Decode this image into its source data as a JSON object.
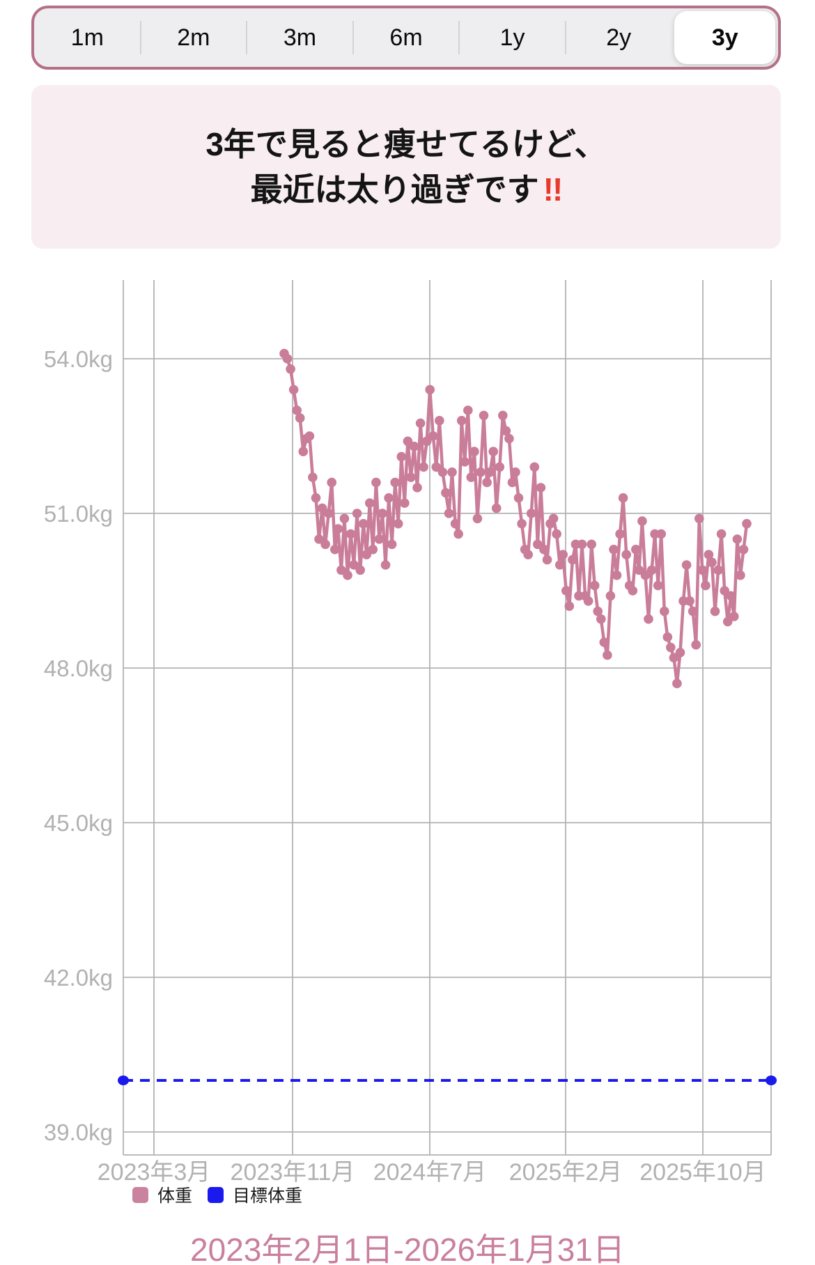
{
  "segmented_control": {
    "items": [
      {
        "label": "1m",
        "selected": false
      },
      {
        "label": "2m",
        "selected": false
      },
      {
        "label": "3m",
        "selected": false
      },
      {
        "label": "6m",
        "selected": false
      },
      {
        "label": "1y",
        "selected": false
      },
      {
        "label": "2y",
        "selected": false
      },
      {
        "label": "3y",
        "selected": true
      }
    ]
  },
  "banner": {
    "line1": "3年で見ると痩せてるけど、",
    "line2": "最近は太り過ぎです",
    "emphasis": "!!",
    "background": "#f8eef1",
    "emphasis_color": "#e8392b"
  },
  "legend": {
    "items": [
      {
        "label": "体重",
        "color": "#c9839e"
      },
      {
        "label": "目標体重",
        "color": "#1a1aee"
      }
    ]
  },
  "footer": {
    "date_range": "2023年2月1日-2026年1月31日",
    "color": "#c97f9d"
  },
  "chart_data": {
    "type": "line",
    "title": "",
    "xlabel": "",
    "ylabel": "",
    "grid": true,
    "legend_position": "bottom-left",
    "ylim": [
      38.6,
      55.5
    ],
    "x_range": [
      "2023-02-01",
      "2026-01-31"
    ],
    "y_ticks": [
      {
        "value": 54,
        "label": "54.0kg"
      },
      {
        "value": 51,
        "label": "51.0kg"
      },
      {
        "value": 48,
        "label": "48.0kg"
      },
      {
        "value": 45,
        "label": "45.0kg"
      },
      {
        "value": 42,
        "label": "42.0kg"
      },
      {
        "value": 39,
        "label": "39.0kg"
      }
    ],
    "x_ticks": [
      "2023年3月",
      "2023年11月",
      "2024年7月",
      "2025年2月",
      "2025年10月"
    ],
    "axis_color": "#b1b1b3",
    "grid_color": "#b3b3b5",
    "series": [
      {
        "name": "体重",
        "type": "scatter-line",
        "color": "#c97d98",
        "points": [
          [
            "2023-10-23",
            54.1
          ],
          [
            "2023-10-26",
            54.0
          ],
          [
            "2023-10-29",
            53.8
          ],
          [
            "2023-11-03",
            53.4
          ],
          [
            "2023-11-08",
            53.0
          ],
          [
            "2023-11-13",
            52.85
          ],
          [
            "2023-11-19",
            52.2
          ],
          [
            "2023-11-23",
            52.45
          ],
          [
            "2023-11-27",
            52.5
          ],
          [
            "2023-12-02",
            51.7
          ],
          [
            "2023-12-05",
            51.3
          ],
          [
            "2023-12-09",
            50.5
          ],
          [
            "2023-12-13",
            51.1
          ],
          [
            "2023-12-18",
            50.4
          ],
          [
            "2023-12-22",
            51.0
          ],
          [
            "2023-12-27",
            51.6
          ],
          [
            "2023-12-31",
            50.3
          ],
          [
            "2024-01-04",
            50.7
          ],
          [
            "2024-01-09",
            49.9
          ],
          [
            "2024-01-14",
            50.9
          ],
          [
            "2024-01-19",
            49.8
          ],
          [
            "2024-01-24",
            50.6
          ],
          [
            "2024-01-29",
            50.0
          ],
          [
            "2024-02-03",
            51.0
          ],
          [
            "2024-02-08",
            49.9
          ],
          [
            "2024-02-13",
            50.8
          ],
          [
            "2024-02-18",
            50.2
          ],
          [
            "2024-02-23",
            51.2
          ],
          [
            "2024-02-28",
            50.3
          ],
          [
            "2024-03-04",
            51.6
          ],
          [
            "2024-03-09",
            50.5
          ],
          [
            "2024-03-14",
            51.0
          ],
          [
            "2024-03-19",
            50.0
          ],
          [
            "2024-03-24",
            51.3
          ],
          [
            "2024-03-29",
            50.4
          ],
          [
            "2024-04-03",
            51.6
          ],
          [
            "2024-04-08",
            50.8
          ],
          [
            "2024-04-13",
            52.1
          ],
          [
            "2024-04-18",
            51.2
          ],
          [
            "2024-04-23",
            52.4
          ],
          [
            "2024-04-28",
            51.7
          ],
          [
            "2024-05-03",
            52.3
          ],
          [
            "2024-05-08",
            51.5
          ],
          [
            "2024-05-13",
            52.75
          ],
          [
            "2024-05-19",
            51.9
          ],
          [
            "2024-05-24",
            52.4
          ],
          [
            "2024-05-29",
            53.4
          ],
          [
            "2024-06-03",
            52.5
          ],
          [
            "2024-06-08",
            51.9
          ],
          [
            "2024-06-12",
            52.8
          ],
          [
            "2024-06-17",
            51.8
          ],
          [
            "2024-06-22",
            51.4
          ],
          [
            "2024-06-29",
            51.0
          ],
          [
            "2024-07-05",
            51.8
          ],
          [
            "2024-07-11",
            50.8
          ],
          [
            "2024-07-18",
            50.6
          ],
          [
            "2024-07-26",
            52.8
          ],
          [
            "2024-08-01",
            52.0
          ],
          [
            "2024-08-07",
            53.0
          ],
          [
            "2024-08-15",
            51.7
          ],
          [
            "2024-08-21",
            52.2
          ],
          [
            "2024-08-27",
            50.9
          ],
          [
            "2024-09-02",
            51.8
          ],
          [
            "2024-09-08",
            52.9
          ],
          [
            "2024-09-15",
            51.6
          ],
          [
            "2024-09-21",
            51.8
          ],
          [
            "2024-10-01",
            52.2
          ],
          [
            "2024-10-09",
            51.1
          ],
          [
            "2024-10-17",
            51.9
          ],
          [
            "2024-10-26",
            52.9
          ],
          [
            "2024-11-02",
            52.6
          ],
          [
            "2024-11-08",
            52.45
          ],
          [
            "2024-11-17",
            51.6
          ],
          [
            "2024-11-25",
            51.8
          ],
          [
            "2024-12-02",
            51.3
          ],
          [
            "2024-12-06",
            50.8
          ],
          [
            "2024-12-09",
            50.3
          ],
          [
            "2024-12-12",
            50.2
          ],
          [
            "2024-12-16",
            51.0
          ],
          [
            "2024-12-21",
            51.9
          ],
          [
            "2024-12-26",
            50.4
          ],
          [
            "2024-12-31",
            51.5
          ],
          [
            "2025-01-05",
            50.3
          ],
          [
            "2025-01-10",
            50.1
          ],
          [
            "2025-01-16",
            50.8
          ],
          [
            "2025-01-24",
            50.9
          ],
          [
            "2025-01-30",
            50.6
          ],
          [
            "2025-02-05",
            50.0
          ],
          [
            "2025-02-11",
            50.2
          ],
          [
            "2025-02-17",
            49.5
          ],
          [
            "2025-02-24",
            49.2
          ],
          [
            "2025-03-02",
            50.1
          ],
          [
            "2025-03-07",
            50.4
          ],
          [
            "2025-03-14",
            49.4
          ],
          [
            "2025-03-20",
            50.4
          ],
          [
            "2025-03-27",
            49.4
          ],
          [
            "2025-04-02",
            49.3
          ],
          [
            "2025-04-07",
            50.4
          ],
          [
            "2025-04-12",
            49.6
          ],
          [
            "2025-04-17",
            49.1
          ],
          [
            "2025-04-21",
            48.95
          ],
          [
            "2025-04-26",
            48.5
          ],
          [
            "2025-05-02",
            48.25
          ],
          [
            "2025-05-08",
            49.4
          ],
          [
            "2025-05-14",
            50.3
          ],
          [
            "2025-05-20",
            49.8
          ],
          [
            "2025-05-25",
            50.6
          ],
          [
            "2025-05-30",
            51.3
          ],
          [
            "2025-06-04",
            50.2
          ],
          [
            "2025-06-09",
            49.6
          ],
          [
            "2025-06-15",
            49.5
          ],
          [
            "2025-06-21",
            50.3
          ],
          [
            "2025-06-27",
            49.9
          ],
          [
            "2025-07-04",
            50.85
          ],
          [
            "2025-07-10",
            49.8
          ],
          [
            "2025-07-15",
            48.95
          ],
          [
            "2025-07-20",
            49.9
          ],
          [
            "2025-07-25",
            50.6
          ],
          [
            "2025-07-31",
            49.6
          ],
          [
            "2025-08-04",
            50.6
          ],
          [
            "2025-08-09",
            49.1
          ],
          [
            "2025-08-15",
            48.6
          ],
          [
            "2025-08-21",
            48.4
          ],
          [
            "2025-08-25",
            48.2
          ],
          [
            "2025-08-31",
            47.7
          ],
          [
            "2025-09-04",
            48.3
          ],
          [
            "2025-09-10",
            49.3
          ],
          [
            "2025-09-16",
            50.0
          ],
          [
            "2025-09-22",
            49.3
          ],
          [
            "2025-09-27",
            49.1
          ],
          [
            "2025-10-03",
            48.45
          ],
          [
            "2025-10-10",
            50.9
          ],
          [
            "2025-10-15",
            49.9
          ],
          [
            "2025-10-21",
            49.6
          ],
          [
            "2025-10-28",
            50.2
          ],
          [
            "2025-11-04",
            50.05
          ],
          [
            "2025-11-09",
            49.1
          ],
          [
            "2025-11-16",
            49.9
          ],
          [
            "2025-11-23",
            50.6
          ],
          [
            "2025-11-29",
            49.5
          ],
          [
            "2025-12-05",
            48.9
          ],
          [
            "2025-12-11",
            49.4
          ],
          [
            "2025-12-15",
            49.0
          ],
          [
            "2025-12-21",
            50.5
          ],
          [
            "2025-12-27",
            49.8
          ],
          [
            "2026-01-01",
            50.3
          ],
          [
            "2026-01-05",
            50.8
          ]
        ]
      },
      {
        "name": "目標体重",
        "type": "horizontal-dashed",
        "color": "#1a1aee",
        "value": 40.0
      }
    ]
  }
}
